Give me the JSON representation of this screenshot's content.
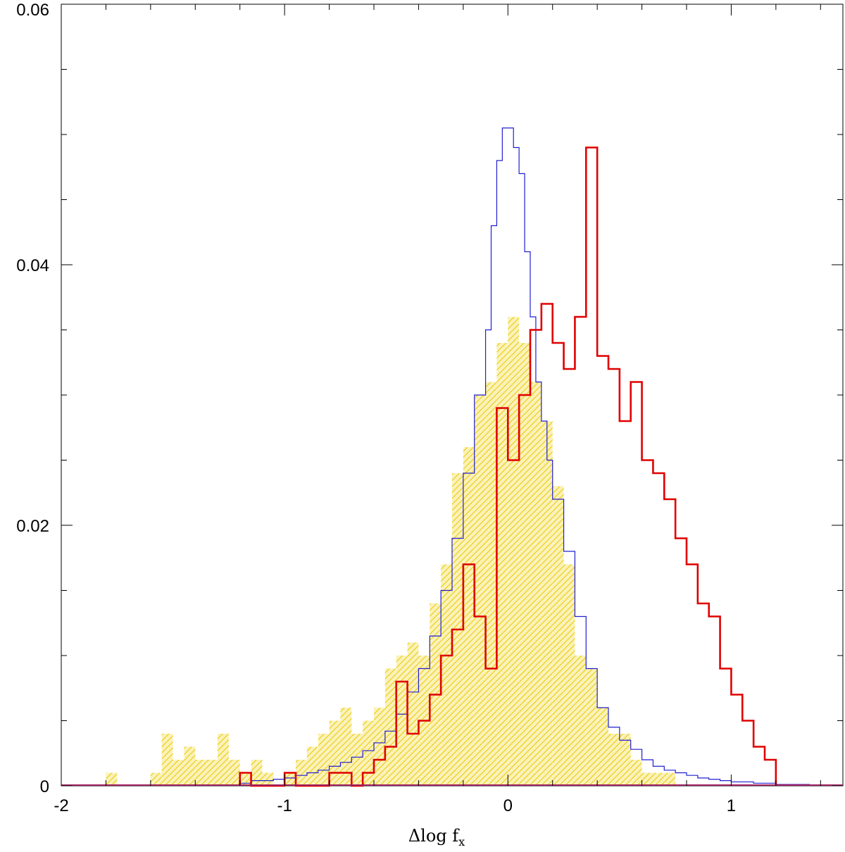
{
  "chart_data": {
    "type": "histogram",
    "xlabel": "Δlog f",
    "xlabel_subscript": "x",
    "xlim": [
      -2,
      1.5
    ],
    "ylim": [
      0,
      0.06
    ],
    "x_ticks": [
      -2,
      -1,
      0,
      1
    ],
    "x_tick_labels": [
      "-2",
      "-1",
      "0",
      "1"
    ],
    "y_ticks": [
      0,
      0.02,
      0.04,
      0.06
    ],
    "y_tick_labels": [
      "0",
      "0.02",
      "0.04",
      "0.06"
    ],
    "grid": false,
    "bin_width": 0.05,
    "series": [
      {
        "style": "yellow hatched filled histogram",
        "color": "#e8c800",
        "points": [
          [
            -1.8,
            0.001
          ],
          [
            -1.6,
            0.001
          ],
          [
            -1.55,
            0.004
          ],
          [
            -1.5,
            0.002
          ],
          [
            -1.45,
            0.003
          ],
          [
            -1.4,
            0.002
          ],
          [
            -1.35,
            0.002
          ],
          [
            -1.3,
            0.004
          ],
          [
            -1.25,
            0.002
          ],
          [
            -1.2,
            0.001
          ],
          [
            -1.15,
            0.002
          ],
          [
            -1.1,
            0.001
          ],
          [
            -1.0,
            0.001
          ],
          [
            -0.95,
            0.002
          ],
          [
            -0.9,
            0.003
          ],
          [
            -0.85,
            0.004
          ],
          [
            -0.8,
            0.005
          ],
          [
            -0.75,
            0.006
          ],
          [
            -0.7,
            0.004
          ],
          [
            -0.65,
            0.005
          ],
          [
            -0.6,
            0.006
          ],
          [
            -0.55,
            0.009
          ],
          [
            -0.5,
            0.01
          ],
          [
            -0.45,
            0.011
          ],
          [
            -0.4,
            0.01
          ],
          [
            -0.35,
            0.014
          ],
          [
            -0.3,
            0.017
          ],
          [
            -0.25,
            0.024
          ],
          [
            -0.2,
            0.026
          ],
          [
            -0.15,
            0.03
          ],
          [
            -0.1,
            0.031
          ],
          [
            -0.05,
            0.034
          ],
          [
            0.0,
            0.036
          ],
          [
            0.05,
            0.034
          ],
          [
            0.1,
            0.031
          ],
          [
            0.15,
            0.028
          ],
          [
            0.2,
            0.023
          ],
          [
            0.25,
            0.017
          ],
          [
            0.3,
            0.01
          ],
          [
            0.35,
            0.009
          ],
          [
            0.4,
            0.006
          ],
          [
            0.45,
            0.004
          ],
          [
            0.5,
            0.004
          ],
          [
            0.55,
            0.002
          ],
          [
            0.6,
            0.001
          ],
          [
            0.65,
            0.001
          ],
          [
            0.7,
            0.001
          ]
        ]
      },
      {
        "style": "blue thin step line",
        "color": "#2020d0",
        "points": [
          [
            -1.2,
            0.0002
          ],
          [
            -1.15,
            0.0004
          ],
          [
            -1.1,
            0.0004
          ],
          [
            -1.05,
            0.0005
          ],
          [
            -1.0,
            0.0006
          ],
          [
            -0.95,
            0.0008
          ],
          [
            -0.9,
            0.001
          ],
          [
            -0.85,
            0.0012
          ],
          [
            -0.8,
            0.0015
          ],
          [
            -0.75,
            0.0018
          ],
          [
            -0.7,
            0.0022
          ],
          [
            -0.65,
            0.0027
          ],
          [
            -0.6,
            0.0033
          ],
          [
            -0.55,
            0.0042
          ],
          [
            -0.5,
            0.0055
          ],
          [
            -0.45,
            0.0072
          ],
          [
            -0.4,
            0.009
          ],
          [
            -0.35,
            0.0115
          ],
          [
            -0.3,
            0.015
          ],
          [
            -0.25,
            0.019
          ],
          [
            -0.2,
            0.024
          ],
          [
            -0.15,
            0.03
          ],
          [
            -0.1,
            0.035
          ],
          [
            -0.075,
            0.043
          ],
          [
            -0.05,
            0.048
          ],
          [
            -0.025,
            0.0505
          ],
          [
            0.0,
            0.0505
          ],
          [
            0.025,
            0.049
          ],
          [
            0.05,
            0.047
          ],
          [
            0.075,
            0.041
          ],
          [
            0.1,
            0.036
          ],
          [
            0.125,
            0.031
          ],
          [
            0.15,
            0.028
          ],
          [
            0.175,
            0.025
          ],
          [
            0.2,
            0.022
          ],
          [
            0.25,
            0.018
          ],
          [
            0.3,
            0.013
          ],
          [
            0.35,
            0.009
          ],
          [
            0.4,
            0.006
          ],
          [
            0.45,
            0.0045
          ],
          [
            0.5,
            0.0035
          ],
          [
            0.55,
            0.0028
          ],
          [
            0.6,
            0.002
          ],
          [
            0.65,
            0.0015
          ],
          [
            0.7,
            0.0012
          ],
          [
            0.75,
            0.001
          ],
          [
            0.8,
            0.0008
          ],
          [
            0.85,
            0.0006
          ],
          [
            0.9,
            0.0005
          ],
          [
            0.95,
            0.0004
          ],
          [
            1.0,
            0.0003
          ],
          [
            1.05,
            0.0003
          ],
          [
            1.1,
            0.0002
          ],
          [
            1.15,
            0.0002
          ],
          [
            1.2,
            0.0001
          ],
          [
            1.3,
            0.0001
          ]
        ]
      },
      {
        "style": "red thick step line",
        "color": "#e00000",
        "points": [
          [
            -1.2,
            0.001
          ],
          [
            -1.15,
            0.0
          ],
          [
            -1.05,
            0.0
          ],
          [
            -1.0,
            0.001
          ],
          [
            -0.95,
            0.0
          ],
          [
            -0.8,
            0.001
          ],
          [
            -0.75,
            0.001
          ],
          [
            -0.7,
            0.0
          ],
          [
            -0.65,
            0.001
          ],
          [
            -0.6,
            0.002
          ],
          [
            -0.55,
            0.003
          ],
          [
            -0.5,
            0.008
          ],
          [
            -0.45,
            0.004
          ],
          [
            -0.4,
            0.005
          ],
          [
            -0.35,
            0.007
          ],
          [
            -0.3,
            0.01
          ],
          [
            -0.25,
            0.012
          ],
          [
            -0.2,
            0.017
          ],
          [
            -0.15,
            0.013
          ],
          [
            -0.1,
            0.009
          ],
          [
            -0.05,
            0.029
          ],
          [
            0.0,
            0.025
          ],
          [
            0.05,
            0.03
          ],
          [
            0.1,
            0.035
          ],
          [
            0.15,
            0.037
          ],
          [
            0.2,
            0.034
          ],
          [
            0.25,
            0.032
          ],
          [
            0.3,
            0.036
          ],
          [
            0.35,
            0.049
          ],
          [
            0.4,
            0.033
          ],
          [
            0.45,
            0.032
          ],
          [
            0.5,
            0.028
          ],
          [
            0.55,
            0.031
          ],
          [
            0.6,
            0.025
          ],
          [
            0.65,
            0.024
          ],
          [
            0.7,
            0.022
          ],
          [
            0.75,
            0.019
          ],
          [
            0.8,
            0.017
          ],
          [
            0.85,
            0.014
          ],
          [
            0.9,
            0.013
          ],
          [
            0.95,
            0.009
          ],
          [
            1.0,
            0.007
          ],
          [
            1.05,
            0.005
          ],
          [
            1.1,
            0.003
          ],
          [
            1.15,
            0.002
          ]
        ]
      }
    ]
  }
}
